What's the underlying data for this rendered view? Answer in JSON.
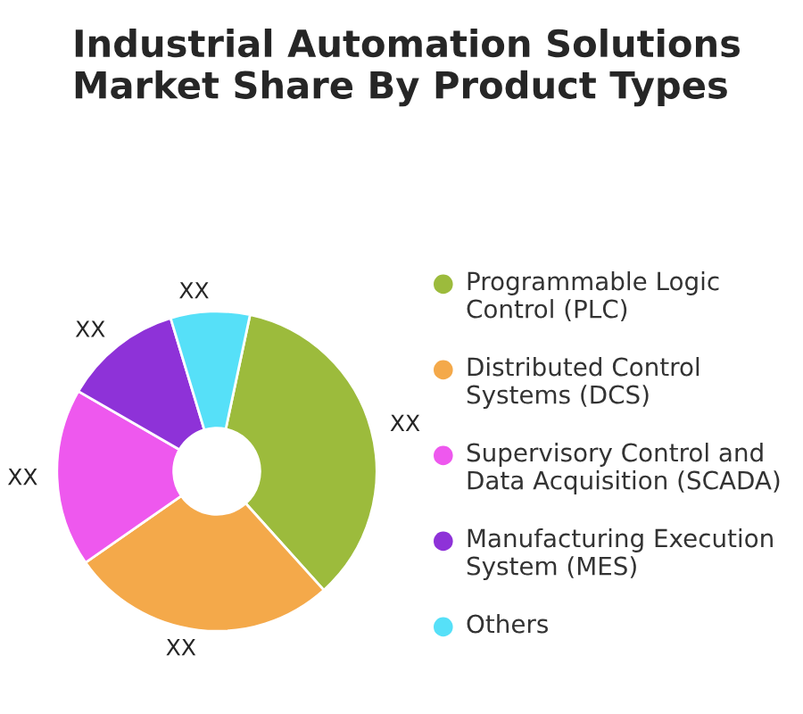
{
  "chart_data": {
    "type": "donut",
    "title": "Industrial Automation Solutions Market Share By Product Types",
    "categories": [
      "Programmable Logic Control (PLC)",
      "Distributed Control Systems (DCS)",
      "Supervisory Control and Data Acquisition (SCADA)",
      "Manufacturing Execution System (MES)",
      "Others"
    ],
    "values": [
      35,
      27,
      18,
      12,
      8
    ],
    "value_labels": [
      "XX",
      "XX",
      "XX",
      "XX",
      "XX"
    ],
    "colors": [
      "#9cbb3c",
      "#f4a94a",
      "#ee58ee",
      "#8e32d8",
      "#56e0f8"
    ],
    "legend": "right"
  }
}
